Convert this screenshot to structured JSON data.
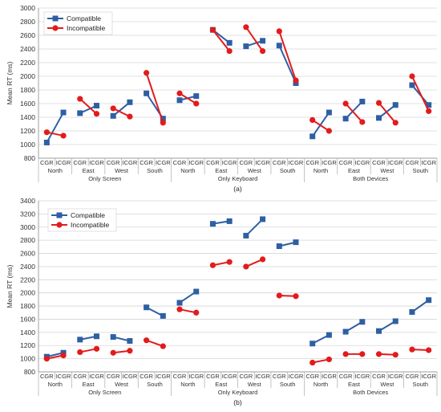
{
  "chart_data": [
    {
      "type": "line",
      "caption": "(a)",
      "ylabel": "Mean RT (ms)",
      "ylim": [
        800,
        3000
      ],
      "yticks": [
        800,
        1000,
        1200,
        1400,
        1600,
        1800,
        2000,
        2200,
        2400,
        2600,
        2800,
        3000
      ],
      "grid": true,
      "legend_position": "top-left",
      "groups": [
        "Only Screen",
        "Only Keyboard",
        "Both Devices"
      ],
      "directions": [
        "North",
        "East",
        "West",
        "South"
      ],
      "conditions": [
        "CGR",
        "ICGR"
      ],
      "series": [
        {
          "name": "Compatible",
          "color": "#2E5FA3",
          "marker": "square",
          "values": [
            [
              [
                1030,
                1470
              ],
              [
                1460,
                1570
              ],
              [
                1420,
                1620
              ],
              [
                1750,
                1380
              ]
            ],
            [
              [
                1650,
                1710
              ],
              [
                2680,
                2490
              ],
              [
                2440,
                2520
              ],
              [
                2450,
                1900
              ]
            ],
            [
              [
                1120,
                1470
              ],
              [
                1380,
                1630
              ],
              [
                1390,
                1580
              ],
              [
                1870,
                1580
              ]
            ]
          ]
        },
        {
          "name": "Incompatible",
          "color": "#E31B1B",
          "marker": "circle",
          "values": [
            [
              [
                1180,
                1130
              ],
              [
                1670,
                1450
              ],
              [
                1530,
                1410
              ],
              [
                2050,
                1320
              ]
            ],
            [
              [
                1750,
                1600
              ],
              [
                2680,
                2370
              ],
              [
                2720,
                2370
              ],
              [
                2660,
                1940
              ]
            ],
            [
              [
                1360,
                1200
              ],
              [
                1600,
                1330
              ],
              [
                1610,
                1320
              ],
              [
                2000,
                1490
              ]
            ]
          ]
        }
      ]
    },
    {
      "type": "line",
      "caption": "(b)",
      "ylabel": "Mean RT (ms)",
      "ylim": [
        800,
        3400
      ],
      "yticks": [
        800,
        1000,
        1200,
        1400,
        1600,
        1800,
        2000,
        2200,
        2400,
        2600,
        2800,
        3000,
        3200,
        3400
      ],
      "grid": true,
      "legend_position": "top-left",
      "groups": [
        "Only Screen",
        "Only Keyboard",
        "Both Devices"
      ],
      "directions": [
        "North",
        "East",
        "West",
        "South"
      ],
      "conditions": [
        "CGR",
        "ICGR"
      ],
      "series": [
        {
          "name": "Compatible",
          "color": "#2E5FA3",
          "marker": "square",
          "values": [
            [
              [
                1030,
                1090
              ],
              [
                1290,
                1340
              ],
              [
                1330,
                1270
              ],
              [
                1780,
                1650
              ]
            ],
            [
              [
                1850,
                2020
              ],
              [
                3050,
                3090
              ],
              [
                2870,
                3120
              ],
              [
                2710,
                2770
              ]
            ],
            [
              [
                1230,
                1360
              ],
              [
                1410,
                1560
              ],
              [
                1420,
                1570
              ],
              [
                1710,
                1890
              ]
            ]
          ]
        },
        {
          "name": "Incompatible",
          "color": "#E31B1B",
          "marker": "circle",
          "values": [
            [
              [
                1000,
                1050
              ],
              [
                1100,
                1150
              ],
              [
                1090,
                1120
              ],
              [
                1280,
                1190
              ]
            ],
            [
              [
                1750,
                1700
              ],
              [
                2420,
                2470
              ],
              [
                2400,
                2510
              ],
              [
                1960,
                1950
              ]
            ],
            [
              [
                940,
                990
              ],
              [
                1070,
                1070
              ],
              [
                1070,
                1060
              ],
              [
                1140,
                1130
              ]
            ]
          ]
        }
      ]
    }
  ]
}
